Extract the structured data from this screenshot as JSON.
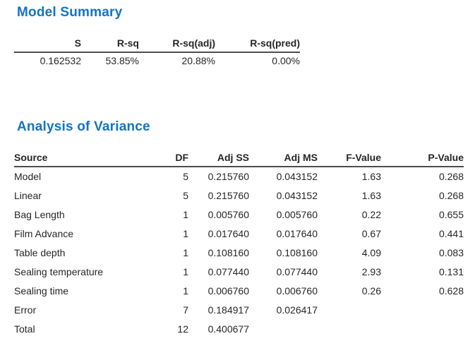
{
  "colors": {
    "heading": "#1274c5",
    "text": "#262626",
    "rule": "#4d4d4d",
    "background": "#ffffff"
  },
  "model_summary": {
    "title": "Model Summary",
    "columns": [
      "S",
      "R-sq",
      "R-sq(adj)",
      "R-sq(pred)"
    ],
    "values": [
      "0.162532",
      "53.85%",
      "20.88%",
      "0.00%"
    ]
  },
  "anova": {
    "title": "Analysis of Variance",
    "columns": [
      "Source",
      "DF",
      "Adj SS",
      "Adj MS",
      "F-Value",
      "P-Value"
    ],
    "rows": [
      {
        "source": "Model",
        "indent": 0,
        "df": "5",
        "adj_ss": "0.215760",
        "adj_ms": "0.043152",
        "f": "1.63",
        "p": "0.268"
      },
      {
        "source": "Linear",
        "indent": 1,
        "df": "5",
        "adj_ss": "0.215760",
        "adj_ms": "0.043152",
        "f": "1.63",
        "p": "0.268"
      },
      {
        "source": "Bag Length",
        "indent": 2,
        "df": "1",
        "adj_ss": "0.005760",
        "adj_ms": "0.005760",
        "f": "0.22",
        "p": "0.655"
      },
      {
        "source": "Film Advance",
        "indent": 2,
        "df": "1",
        "adj_ss": "0.017640",
        "adj_ms": "0.017640",
        "f": "0.67",
        "p": "0.441"
      },
      {
        "source": "Table depth",
        "indent": 2,
        "df": "1",
        "adj_ss": "0.108160",
        "adj_ms": "0.108160",
        "f": "4.09",
        "p": "0.083"
      },
      {
        "source": "Sealing temperature",
        "indent": 2,
        "df": "1",
        "adj_ss": "0.077440",
        "adj_ms": "0.077440",
        "f": "2.93",
        "p": "0.131"
      },
      {
        "source": "Sealing time",
        "indent": 2,
        "df": "1",
        "adj_ss": "0.006760",
        "adj_ms": "0.006760",
        "f": "0.26",
        "p": "0.628"
      },
      {
        "source": "Error",
        "indent": 0,
        "df": "7",
        "adj_ss": "0.184917",
        "adj_ms": "0.026417",
        "f": "",
        "p": ""
      },
      {
        "source": "Total",
        "indent": 0,
        "df": "12",
        "adj_ss": "0.400677",
        "adj_ms": "",
        "f": "",
        "p": ""
      }
    ]
  }
}
